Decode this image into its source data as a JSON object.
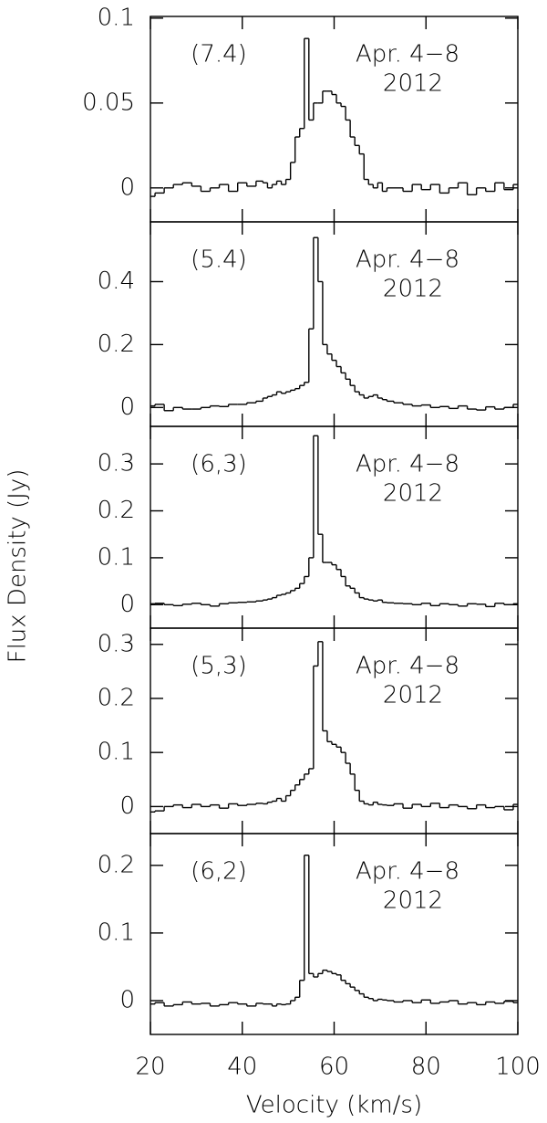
{
  "chart_data": [
    {
      "type": "step",
      "annotations": [
        "(7.4)",
        "Apr. 4−8",
        "2012"
      ],
      "color": "#000000",
      "x": [
        20,
        22,
        24,
        26,
        28,
        30,
        32,
        34,
        36,
        38,
        40,
        42,
        44,
        45,
        46,
        47,
        48,
        49,
        50,
        51,
        52,
        53,
        54,
        55,
        56,
        57,
        58,
        59,
        60,
        61,
        62,
        63,
        64,
        65,
        66,
        67,
        68,
        69,
        70,
        71,
        72,
        74,
        76,
        78,
        80,
        82,
        84,
        86,
        88,
        90,
        92,
        94,
        96,
        98,
        100
      ],
      "values": [
        -0.005,
        -0.003,
        0,
        0.002,
        0.003,
        0.001,
        -0.002,
        0,
        0.002,
        -0.002,
        0.003,
        0.001,
        0.004,
        0.003,
        0,
        0.002,
        0.004,
        0.002,
        0.005,
        0.015,
        0.03,
        0.035,
        0.088,
        0.04,
        0.05,
        0.05,
        0.057,
        0.057,
        0.055,
        0.05,
        0.048,
        0.04,
        0.03,
        0.025,
        0.02,
        0.005,
        0.002,
        0,
        0.003,
        -0.002,
        0,
        0,
        -0.002,
        0.002,
        -0.001,
        0.002,
        -0.003,
        0,
        0.003,
        -0.004,
        0,
        -0.002,
        0.003,
        -0.001,
        0.002
      ],
      "xlim": [
        20,
        100
      ],
      "xticks": [
        20,
        40,
        60,
        80,
        100
      ],
      "ylim": [
        -0.02,
        0.101
      ],
      "yticks": [
        0,
        0.05,
        0.1
      ]
    },
    {
      "type": "step",
      "annotations": [
        "(5.4)",
        "Apr. 4−8",
        "2012"
      ],
      "color": "#000000",
      "x": [
        20,
        22,
        24,
        26,
        28,
        30,
        32,
        34,
        36,
        38,
        40,
        42,
        44,
        45,
        46,
        47,
        48,
        49,
        50,
        51,
        52,
        53,
        54,
        55,
        56,
        57,
        58,
        59,
        60,
        61,
        62,
        63,
        64,
        65,
        66,
        67,
        68,
        69,
        70,
        71,
        72,
        74,
        76,
        78,
        80,
        82,
        84,
        86,
        88,
        90,
        92,
        94,
        96,
        98,
        100
      ],
      "values": [
        0.005,
        0.01,
        -0.01,
        0,
        -0.005,
        -0.005,
        0,
        0.005,
        0.003,
        0.01,
        0.01,
        0.015,
        0.02,
        0.03,
        0.035,
        0.04,
        0.05,
        0.045,
        0.05,
        0.055,
        0.06,
        0.07,
        0.08,
        0.25,
        0.54,
        0.4,
        0.2,
        0.17,
        0.15,
        0.13,
        0.11,
        0.09,
        0.07,
        0.05,
        0.04,
        0.03,
        0.035,
        0.04,
        0.03,
        0.025,
        0.02,
        0.015,
        0.01,
        0.005,
        0.008,
        0,
        0.003,
        -0.003,
        0.005,
        -0.005,
        -0.008,
        0.002,
        -0.005,
        0,
        0.01
      ],
      "xlim": [
        20,
        100
      ],
      "xticks": [
        20,
        40,
        60,
        80,
        100
      ],
      "ylim": [
        -0.06,
        0.59
      ],
      "yticks": [
        0,
        0.2,
        0.4
      ]
    },
    {
      "type": "step",
      "annotations": [
        "(6,3)",
        "Apr. 4−8",
        "2012"
      ],
      "ylabel": "Flux Density (Jy)",
      "color": "#000000",
      "x": [
        20,
        22,
        24,
        26,
        28,
        30,
        32,
        34,
        36,
        38,
        40,
        42,
        44,
        45,
        46,
        47,
        48,
        49,
        50,
        51,
        52,
        53,
        54,
        55,
        56,
        57,
        58,
        59,
        60,
        61,
        62,
        63,
        64,
        65,
        66,
        67,
        68,
        69,
        70,
        71,
        72,
        74,
        76,
        78,
        80,
        82,
        84,
        86,
        88,
        90,
        92,
        94,
        96,
        98,
        100
      ],
      "values": [
        0.002,
        0.003,
        0,
        -0.002,
        0.001,
        0.003,
        0,
        -0.003,
        0.002,
        0.004,
        0.005,
        0.006,
        0.008,
        0.01,
        0.012,
        0.015,
        0.02,
        0.022,
        0.025,
        0.03,
        0.035,
        0.045,
        0.06,
        0.1,
        0.36,
        0.15,
        0.09,
        0.09,
        0.085,
        0.075,
        0.06,
        0.04,
        0.035,
        0.025,
        0.015,
        0.012,
        0.01,
        0.008,
        0.01,
        0.005,
        0.004,
        0.003,
        0.002,
        0,
        0.003,
        -0.002,
        0.002,
        0,
        -0.003,
        0.002,
        0.001,
        -0.004,
        0.003,
        0,
        0.002
      ],
      "xlim": [
        20,
        100
      ],
      "xticks": [
        20,
        40,
        60,
        80,
        100
      ],
      "ylim": [
        -0.05,
        0.38
      ],
      "yticks": [
        0,
        0.1,
        0.2,
        0.3
      ]
    },
    {
      "type": "step",
      "annotations": [
        "(5,3)",
        "Apr. 4−8",
        "2012"
      ],
      "color": "#000000",
      "x": [
        20,
        22,
        24,
        26,
        28,
        30,
        32,
        34,
        36,
        38,
        40,
        42,
        44,
        45,
        46,
        47,
        48,
        49,
        50,
        51,
        52,
        53,
        54,
        55,
        56,
        57,
        58,
        59,
        60,
        61,
        62,
        63,
        64,
        65,
        66,
        67,
        68,
        69,
        70,
        71,
        72,
        74,
        76,
        78,
        80,
        82,
        84,
        86,
        88,
        90,
        92,
        94,
        96,
        98,
        100
      ],
      "values": [
        -0.01,
        -0.008,
        0,
        0.003,
        -0.002,
        0.004,
        0,
        0.003,
        -0.003,
        0.005,
        0.002,
        0.004,
        0.006,
        0.005,
        0.008,
        0.01,
        0.015,
        0.01,
        0.02,
        0.03,
        0.04,
        0.05,
        0.06,
        0.07,
        0.26,
        0.305,
        0.14,
        0.12,
        0.115,
        0.11,
        0.1,
        0.08,
        0.06,
        0.03,
        0.01,
        0.005,
        0.003,
        0.008,
        0.004,
        0.003,
        0.002,
        0.005,
        -0.003,
        0.004,
        0,
        0.006,
        -0.002,
        0.003,
        0,
        -0.004,
        0.003,
        -0.002,
        0,
        -0.006,
        0.004
      ],
      "xlim": [
        20,
        100
      ],
      "xticks": [
        20,
        40,
        60,
        80,
        100
      ],
      "ylim": [
        -0.05,
        0.33
      ],
      "yticks": [
        0,
        0.1,
        0.2,
        0.3
      ]
    },
    {
      "type": "step",
      "annotations": [
        "(6,2)",
        "Apr. 4−8",
        "2012"
      ],
      "xlabel": "Velocity (km/s)",
      "color": "#000000",
      "x": [
        20,
        22,
        24,
        26,
        28,
        30,
        32,
        34,
        36,
        38,
        40,
        42,
        44,
        45,
        46,
        47,
        48,
        49,
        50,
        51,
        52,
        53,
        54,
        55,
        56,
        57,
        58,
        59,
        60,
        61,
        62,
        63,
        64,
        65,
        66,
        67,
        68,
        69,
        70,
        71,
        72,
        74,
        76,
        78,
        80,
        82,
        84,
        86,
        88,
        90,
        92,
        94,
        96,
        98,
        100
      ],
      "values": [
        -0.005,
        -0.003,
        -0.008,
        -0.006,
        -0.002,
        -0.005,
        -0.004,
        -0.008,
        -0.006,
        -0.003,
        -0.005,
        -0.008,
        -0.004,
        -0.005,
        -0.005,
        -0.008,
        -0.005,
        -0.006,
        -0.005,
        0,
        0.005,
        0.03,
        0.215,
        0.04,
        0.035,
        0.04,
        0.045,
        0.043,
        0.04,
        0.038,
        0.03,
        0.025,
        0.02,
        0.015,
        0.01,
        0.005,
        0.003,
        0,
        0.002,
        0.001,
        0,
        -0.002,
        0,
        -0.003,
        0.001,
        -0.004,
        -0.002,
        0,
        -0.005,
        -0.003,
        -0.006,
        -0.002,
        -0.004,
        -0.001,
        -0.003
      ],
      "xlim": [
        20,
        100
      ],
      "xticks": [
        20,
        40,
        60,
        80,
        100
      ],
      "ylim": [
        -0.05,
        0.247
      ],
      "yticks": [
        0,
        0.1,
        0.2
      ]
    }
  ]
}
